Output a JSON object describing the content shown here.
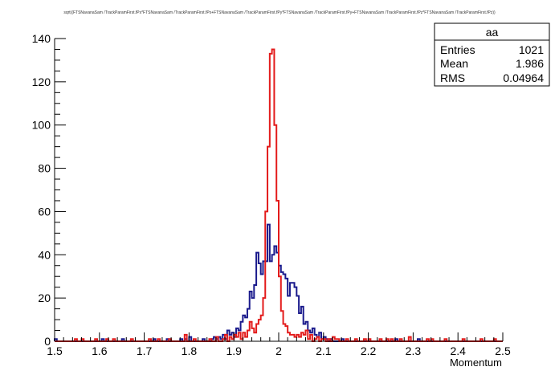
{
  "chart_data": {
    "type": "histogram",
    "title": "sqrt((FTSNavanaSam /TrackParamFirst.fPx*FTSNavanaSam /TrackParamFirst.fPx+FTSNavanaSam /TrackParamFirst.fPy*FTSNavanaSam /TrackParamFirst.fPy+FTSNavanaSam /TrackParamFirst.fPz*FTSNavanaSam /TrackParamFirst.fPz))",
    "xlabel": "Momentum",
    "ylabel": "",
    "xlim": [
      1.5,
      2.5
    ],
    "ylim": [
      0,
      140
    ],
    "bin_width": 0.005,
    "x_ticks": [
      "1.5",
      "1.6",
      "1.7",
      "1.8",
      "1.9",
      "2",
      "2.1",
      "2.2",
      "2.3",
      "2.4",
      "2.5"
    ],
    "y_ticks": [
      "0",
      "20",
      "40",
      "60",
      "80",
      "100",
      "120",
      "140"
    ],
    "grid": false,
    "series": [
      {
        "color": "#1a1a8c",
        "bins": [
          [
            1.5,
            1
          ],
          [
            1.605,
            1
          ],
          [
            1.65,
            1
          ],
          [
            1.72,
            1
          ],
          [
            1.75,
            1
          ],
          [
            1.78,
            1
          ],
          [
            1.79,
            1
          ],
          [
            1.8,
            2
          ],
          [
            1.83,
            1
          ],
          [
            1.85,
            1
          ],
          [
            1.855,
            2
          ],
          [
            1.86,
            1
          ],
          [
            1.865,
            2
          ],
          [
            1.87,
            1
          ],
          [
            1.875,
            3
          ],
          [
            1.88,
            1
          ],
          [
            1.885,
            5
          ],
          [
            1.89,
            3
          ],
          [
            1.895,
            4
          ],
          [
            1.9,
            2
          ],
          [
            1.905,
            6
          ],
          [
            1.91,
            5
          ],
          [
            1.915,
            9
          ],
          [
            1.92,
            12
          ],
          [
            1.925,
            11
          ],
          [
            1.93,
            15
          ],
          [
            1.935,
            23
          ],
          [
            1.94,
            20
          ],
          [
            1.945,
            26
          ],
          [
            1.95,
            41
          ],
          [
            1.955,
            36
          ],
          [
            1.96,
            31
          ],
          [
            1.965,
            37
          ],
          [
            1.97,
            37
          ],
          [
            1.975,
            54
          ],
          [
            1.98,
            37
          ],
          [
            1.985,
            40
          ],
          [
            1.99,
            44
          ],
          [
            1.995,
            41
          ],
          [
            2.0,
            35
          ],
          [
            2.005,
            32
          ],
          [
            2.01,
            31
          ],
          [
            2.015,
            29
          ],
          [
            2.02,
            21
          ],
          [
            2.025,
            27
          ],
          [
            2.03,
            27
          ],
          [
            2.035,
            25
          ],
          [
            2.04,
            21
          ],
          [
            2.045,
            13
          ],
          [
            2.05,
            16
          ],
          [
            2.055,
            8
          ],
          [
            2.06,
            9
          ],
          [
            2.065,
            5
          ],
          [
            2.07,
            4
          ],
          [
            2.075,
            6
          ],
          [
            2.08,
            3
          ],
          [
            2.085,
            2
          ],
          [
            2.09,
            4
          ],
          [
            2.095,
            1
          ],
          [
            2.1,
            2
          ],
          [
            2.105,
            1
          ],
          [
            2.115,
            1
          ],
          [
            2.14,
            1
          ],
          [
            2.26,
            1
          ],
          [
            2.31,
            1
          ]
        ]
      },
      {
        "color": "#e31b1b",
        "bins": [
          [
            1.545,
            1
          ],
          [
            1.56,
            1
          ],
          [
            1.59,
            1
          ],
          [
            1.615,
            1
          ],
          [
            1.63,
            1
          ],
          [
            1.67,
            1
          ],
          [
            1.71,
            1
          ],
          [
            1.73,
            1
          ],
          [
            1.755,
            1
          ],
          [
            1.79,
            3
          ],
          [
            1.81,
            1
          ],
          [
            1.845,
            1
          ],
          [
            1.86,
            2
          ],
          [
            1.875,
            1
          ],
          [
            1.88,
            3
          ],
          [
            1.89,
            2
          ],
          [
            1.895,
            1
          ],
          [
            1.9,
            3
          ],
          [
            1.905,
            2
          ],
          [
            1.91,
            4
          ],
          [
            1.915,
            1
          ],
          [
            1.92,
            4
          ],
          [
            1.925,
            2
          ],
          [
            1.93,
            5
          ],
          [
            1.935,
            9
          ],
          [
            1.94,
            6
          ],
          [
            1.945,
            4
          ],
          [
            1.95,
            8
          ],
          [
            1.955,
            10
          ],
          [
            1.96,
            12
          ],
          [
            1.965,
            20
          ],
          [
            1.97,
            60
          ],
          [
            1.975,
            90
          ],
          [
            1.98,
            133
          ],
          [
            1.985,
            135
          ],
          [
            1.99,
            100
          ],
          [
            1.995,
            65
          ],
          [
            2.0,
            30
          ],
          [
            2.005,
            14
          ],
          [
            2.01,
            8
          ],
          [
            2.015,
            7
          ],
          [
            2.02,
            4
          ],
          [
            2.025,
            3
          ],
          [
            2.03,
            3
          ],
          [
            2.035,
            2
          ],
          [
            2.04,
            3
          ],
          [
            2.045,
            2
          ],
          [
            2.05,
            4
          ],
          [
            2.055,
            3
          ],
          [
            2.06,
            5
          ],
          [
            2.065,
            1
          ],
          [
            2.07,
            3
          ],
          [
            2.08,
            1
          ],
          [
            2.085,
            2
          ],
          [
            2.095,
            1
          ],
          [
            2.1,
            1
          ],
          [
            2.11,
            1
          ],
          [
            2.12,
            2
          ],
          [
            2.125,
            1
          ],
          [
            2.13,
            1
          ],
          [
            2.15,
            1
          ],
          [
            2.17,
            1
          ],
          [
            2.19,
            1
          ],
          [
            2.2,
            1
          ],
          [
            2.225,
            1
          ],
          [
            2.24,
            1
          ],
          [
            2.25,
            1
          ],
          [
            2.27,
            1
          ],
          [
            2.29,
            2
          ],
          [
            2.33,
            1
          ],
          [
            2.34,
            1
          ],
          [
            2.37,
            1
          ],
          [
            2.41,
            1
          ],
          [
            2.45,
            1
          ],
          [
            2.48,
            1
          ]
        ]
      }
    ],
    "legend": "none"
  },
  "stats_box": {
    "name": "aa",
    "rows": [
      {
        "label": "Entries",
        "value": "1021"
      },
      {
        "label": "Mean",
        "value": "1.986"
      },
      {
        "label": "RMS",
        "value": "0.04964"
      }
    ]
  }
}
